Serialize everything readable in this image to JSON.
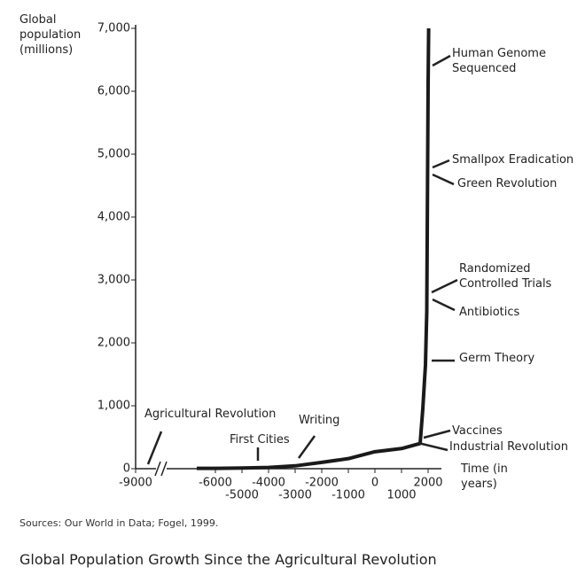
{
  "chart_data": {
    "type": "line",
    "title": "Global Population Growth Since the Agricultural Revolution",
    "source": "Sources: Our World in Data; Fogel, 1999.",
    "y_label": "Global population (millions)",
    "x_label": "Time (in years)",
    "x": [
      -6700,
      -6000,
      -5000,
      -4000,
      -3000,
      -2000,
      -1000,
      0,
      1000,
      1700,
      1800,
      1900,
      1950,
      2000,
      2020
    ],
    "series": [
      {
        "name": "Global population",
        "color": "#1a1a1a",
        "values": [
          5,
          5,
          10,
          20,
          45,
          100,
          160,
          270,
          320,
          400,
          950,
          1650,
          2500,
          6100,
          7000
        ]
      }
    ],
    "xlim": [
      -9000,
      2500
    ],
    "ylim": [
      0,
      7000
    ],
    "xticks": [
      -9000,
      -6000,
      -5000,
      -4000,
      -3000,
      -2000,
      -1000,
      0,
      1000,
      2000
    ],
    "yticks": [
      0,
      {
        "value": 1000,
        "label": "1,000"
      },
      {
        "value": 2000,
        "label": "2,000"
      },
      {
        "value": 3000,
        "label": "3,000"
      },
      {
        "value": 4000,
        "label": "4,000"
      },
      {
        "value": 5000,
        "label": "5,000"
      },
      {
        "value": 6000,
        "label": "6,000"
      },
      {
        "value": 7000,
        "label": "7,000"
      }
    ],
    "annotations": [
      "Agricultural Revolution",
      "First Cities",
      "Writing",
      "Vaccines",
      "Industrial Revolution",
      "Germ Theory",
      "Antibiotics",
      "Randomized Controlled Trials",
      "Green Revolution",
      "Smallpox Eradication",
      "Human Genome Sequenced"
    ]
  }
}
